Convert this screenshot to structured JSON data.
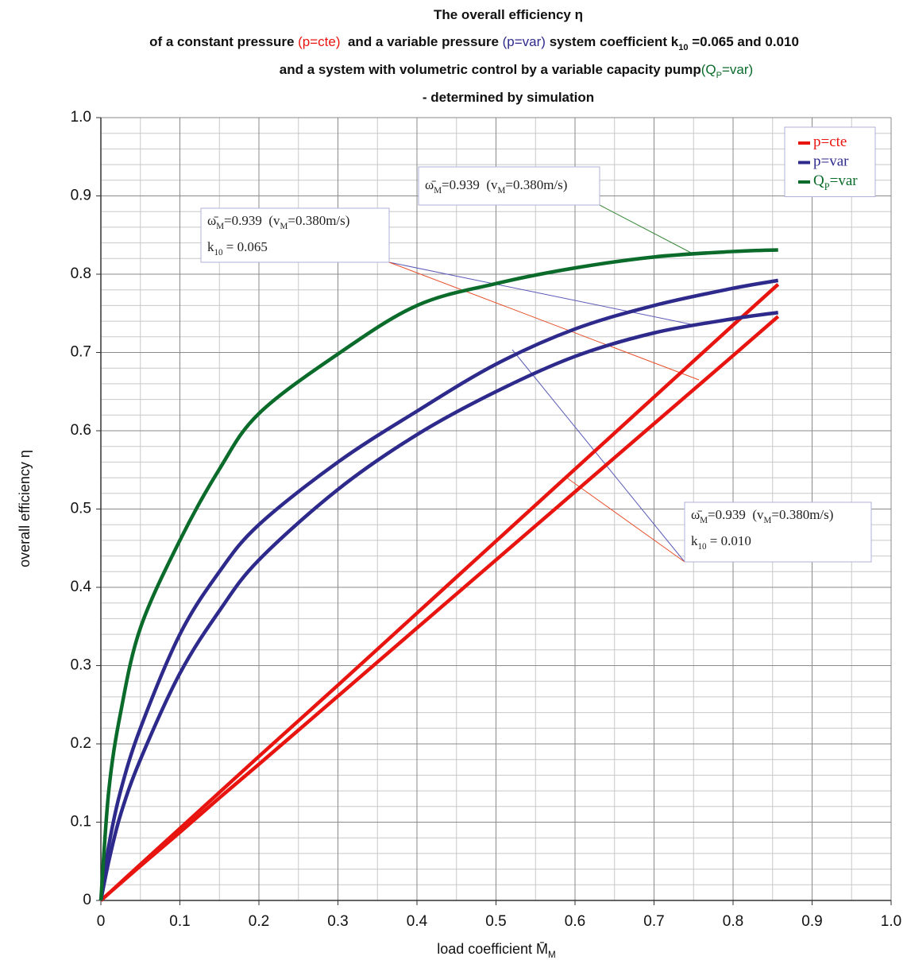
{
  "chart_data": {
    "type": "line",
    "title_lines": [
      [
        {
          "text": "The overall efficiency η"
        }
      ],
      [
        {
          "text": "of a constant pressure "
        },
        {
          "text": "(p=cte)",
          "color": "#e8140f"
        },
        {
          "text": "  and a variable pressure "
        },
        {
          "text": "(p=var)",
          "color": "#2e2a8c"
        },
        {
          "text": " system coefficient k"
        },
        {
          "text": "10",
          "sub": true
        },
        {
          "text": " =0.065 and 0.010"
        }
      ],
      [
        {
          "text": "and a system with volumetric control by a variable capacity pump"
        },
        {
          "text": "(Q",
          "color": "#0a6b2a"
        },
        {
          "text": "P",
          "sub": true,
          "color": "#0a6b2a"
        },
        {
          "text": "=var)",
          "color": "#0a6b2a"
        }
      ],
      [
        {
          "text": "- determined by simulation"
        }
      ]
    ],
    "x_label": [
      {
        "text": "load coefficient "
      },
      {
        "text": "M̄"
      },
      {
        "text": "M",
        "sub": true
      }
    ],
    "y_label": "overall efficiency η",
    "x": [
      0,
      0.01,
      0.025,
      0.05,
      0.1,
      0.15,
      0.2,
      0.3,
      0.4,
      0.5,
      0.6,
      0.7,
      0.8,
      0.857
    ],
    "series": [
      {
        "name": [
          {
            "text": "p=cte"
          }
        ],
        "color": "#e8140f",
        "values": [
          0,
          0.009,
          0.023,
          0.046,
          0.092,
          0.138,
          0.184,
          0.275,
          0.367,
          0.459,
          0.551,
          0.643,
          0.735,
          0.787
        ]
      },
      {
        "name": [
          {
            "text": "p=cte"
          }
        ],
        "color": "#e8140f",
        "values": [
          0,
          0.009,
          0.022,
          0.044,
          0.087,
          0.131,
          0.174,
          0.261,
          0.348,
          0.435,
          0.522,
          0.609,
          0.696,
          0.746
        ]
      },
      {
        "name": [
          {
            "text": "p=var"
          }
        ],
        "color": "#2e2a8c",
        "values": [
          0,
          0.07,
          0.14,
          0.22,
          0.34,
          0.42,
          0.48,
          0.56,
          0.625,
          0.685,
          0.73,
          0.76,
          0.782,
          0.792
        ]
      },
      {
        "name": [
          {
            "text": "p=var"
          }
        ],
        "color": "#2e2a8c",
        "values": [
          0,
          0.05,
          0.11,
          0.18,
          0.29,
          0.37,
          0.435,
          0.525,
          0.595,
          0.65,
          0.695,
          0.725,
          0.743,
          0.751
        ]
      },
      {
        "name": [
          {
            "text": "Q"
          },
          {
            "text": "P",
            "sub": true
          },
          {
            "text": "=var"
          }
        ],
        "color": "#0a6b2a",
        "values": [
          0,
          0.14,
          0.24,
          0.348,
          0.46,
          0.551,
          0.622,
          0.698,
          0.76,
          0.788,
          0.808,
          0.822,
          0.829,
          0.831
        ]
      }
    ],
    "xlim": [
      0,
      1
    ],
    "ylim": [
      0,
      1
    ],
    "xticks": [
      0,
      0.1,
      0.2,
      0.3,
      0.4,
      0.5,
      0.6,
      0.7,
      0.8,
      0.9,
      {
        "value": 1,
        "label": "1.0"
      }
    ],
    "yticks": [
      0,
      0.1,
      0.2,
      0.3,
      0.4,
      0.5,
      0.6,
      0.7,
      0.8,
      0.9,
      {
        "value": 1,
        "label": "1.0"
      }
    ],
    "x_minor_ticks": [
      0.05,
      0.15,
      0.25,
      0.35,
      0.45,
      0.55,
      0.65,
      0.75,
      0.85,
      0.95
    ],
    "y_minor_ticks": [
      0.02,
      0.04,
      0.06,
      0.08,
      0.12,
      0.14,
      0.16,
      0.18,
      0.22,
      0.24,
      0.26,
      0.28,
      0.32,
      0.34,
      0.36,
      0.38,
      0.42,
      0.44,
      0.46,
      0.48,
      0.52,
      0.54,
      0.56,
      0.58,
      0.62,
      0.64,
      0.66,
      0.68,
      0.72,
      0.74,
      0.76,
      0.78,
      0.82,
      0.84,
      0.86,
      0.88,
      0.92,
      0.94,
      0.96,
      0.98
    ],
    "grid": true,
    "legend": "top-right",
    "annotations": [
      {
        "lines": [
          [
            {
              "text": "ω̄"
            },
            {
              "text": "M",
              "sub": true
            },
            {
              "text": "=0.939  (v"
            },
            {
              "text": "M",
              "sub": true
            },
            {
              "text": "=0.380m/s)"
            }
          ]
        ]
      },
      {
        "lines": [
          [
            {
              "text": "ω̄"
            },
            {
              "text": "M",
              "sub": true
            },
            {
              "text": "=0.939  (v"
            },
            {
              "text": "M",
              "sub": true
            },
            {
              "text": "=0.380m/s)"
            }
          ],
          [
            {
              "text": "k"
            },
            {
              "text": "10",
              "sub": true
            },
            {
              "text": " = 0.065"
            }
          ]
        ]
      },
      {
        "lines": [
          [
            {
              "text": "ω̄"
            },
            {
              "text": "M",
              "sub": true
            },
            {
              "text": "=0.939  (v"
            },
            {
              "text": "M",
              "sub": true
            },
            {
              "text": "=0.380m/s)"
            }
          ],
          [
            {
              "text": "k"
            },
            {
              "text": "10",
              "sub": true
            },
            {
              "text": " = 0.010"
            }
          ]
        ]
      }
    ]
  }
}
